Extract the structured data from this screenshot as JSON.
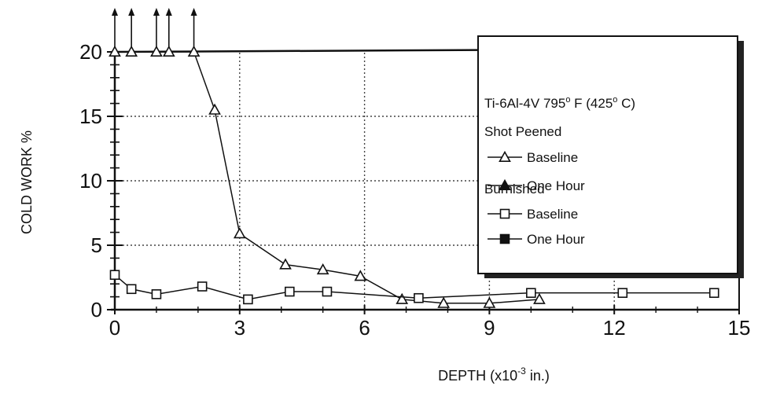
{
  "chart_data": {
    "type": "line",
    "title": "",
    "xlabel": "DEPTH (x10",
    "xlabel_exp": "-3",
    "xlabel_unit": " in.)",
    "ylabel": "COLD WORK %",
    "xlim": [
      0,
      15
    ],
    "ylim": [
      0,
      20
    ],
    "xticks": [
      0,
      3,
      6,
      9,
      12,
      15
    ],
    "yticks": [
      0,
      5,
      10,
      15,
      20
    ],
    "grid": true,
    "legend_position": "top-right",
    "legend": {
      "title_line1": "Ti-6Al-4V 795",
      "title_deg1": "o",
      "title_mid": " F (425",
      "title_deg2": "o",
      "title_end": " C)",
      "group1": "Shot Peened",
      "group2": "Burnished"
    },
    "series": [
      {
        "name": "Baseline",
        "group": "Shot Peened",
        "marker": "triangle-open",
        "x": [
          0,
          0.4,
          1.0,
          1.3,
          1.9,
          2.4,
          3.0,
          4.1,
          5.0,
          5.9,
          6.9,
          7.9,
          9.0,
          10.2
        ],
        "y": [
          20,
          20,
          20,
          20,
          20,
          15.5,
          5.9,
          3.5,
          3.1,
          2.6,
          0.8,
          0.5,
          0.5,
          0.8
        ],
        "arrows_at": [
          0,
          0.4,
          1.0,
          1.3,
          1.9
        ]
      },
      {
        "name": "One Hour",
        "group": "Shot Peened",
        "marker": "triangle-filled",
        "x": [],
        "y": []
      },
      {
        "name": "Baseline",
        "group": "Burnished",
        "marker": "square-open",
        "x": [
          0,
          0.4,
          1.0,
          2.1,
          3.2,
          4.2,
          5.1,
          7.3,
          10.0,
          12.2,
          14.4
        ],
        "y": [
          2.7,
          1.6,
          1.2,
          1.8,
          0.8,
          1.4,
          1.4,
          0.9,
          1.3,
          1.3,
          1.3
        ]
      },
      {
        "name": "One Hour",
        "group": "Burnished",
        "marker": "square-filled",
        "x": [],
        "y": []
      }
    ]
  }
}
